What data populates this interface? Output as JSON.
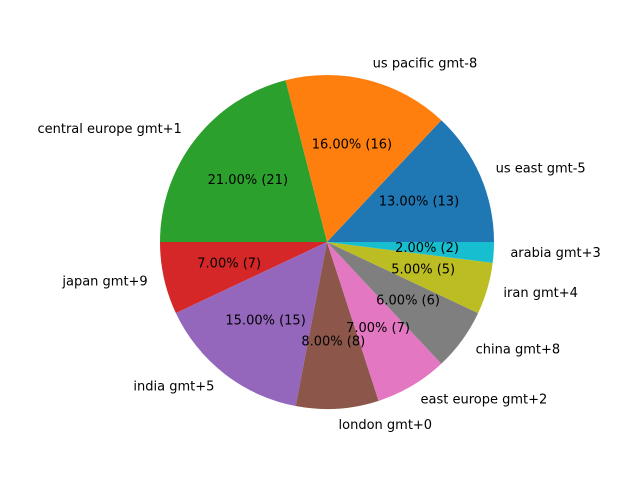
{
  "chart_data": {
    "type": "pie",
    "title": "",
    "categories": [
      "us east gmt-5",
      "us pacific gmt-8",
      "central europe gmt+1",
      "japan gmt+9",
      "india gmt+5",
      "london gmt+0",
      "east europe gmt+2",
      "china gmt+8",
      "iran gmt+4",
      "arabia gmt+3"
    ],
    "values": [
      13,
      16,
      21,
      7,
      15,
      8,
      7,
      6,
      5,
      2
    ],
    "percent_labels": [
      "13.00%  (13)",
      "16.00%  (16)",
      "21.00%  (21)",
      "7.00%  (7)",
      "15.00%  (15)",
      "8.00%  (8)",
      "7.00%  (7)",
      "6.00%  (6)",
      "5.00%  (5)",
      "2.00%  (2)"
    ],
    "colors": [
      "#1f77b4",
      "#ff7f0e",
      "#2ca02c",
      "#d62728",
      "#9467bd",
      "#8c564b",
      "#e377c2",
      "#7f7f7f",
      "#bcbd22",
      "#17becf"
    ],
    "start_angle_deg": 0,
    "direction": "counterclockwise"
  }
}
